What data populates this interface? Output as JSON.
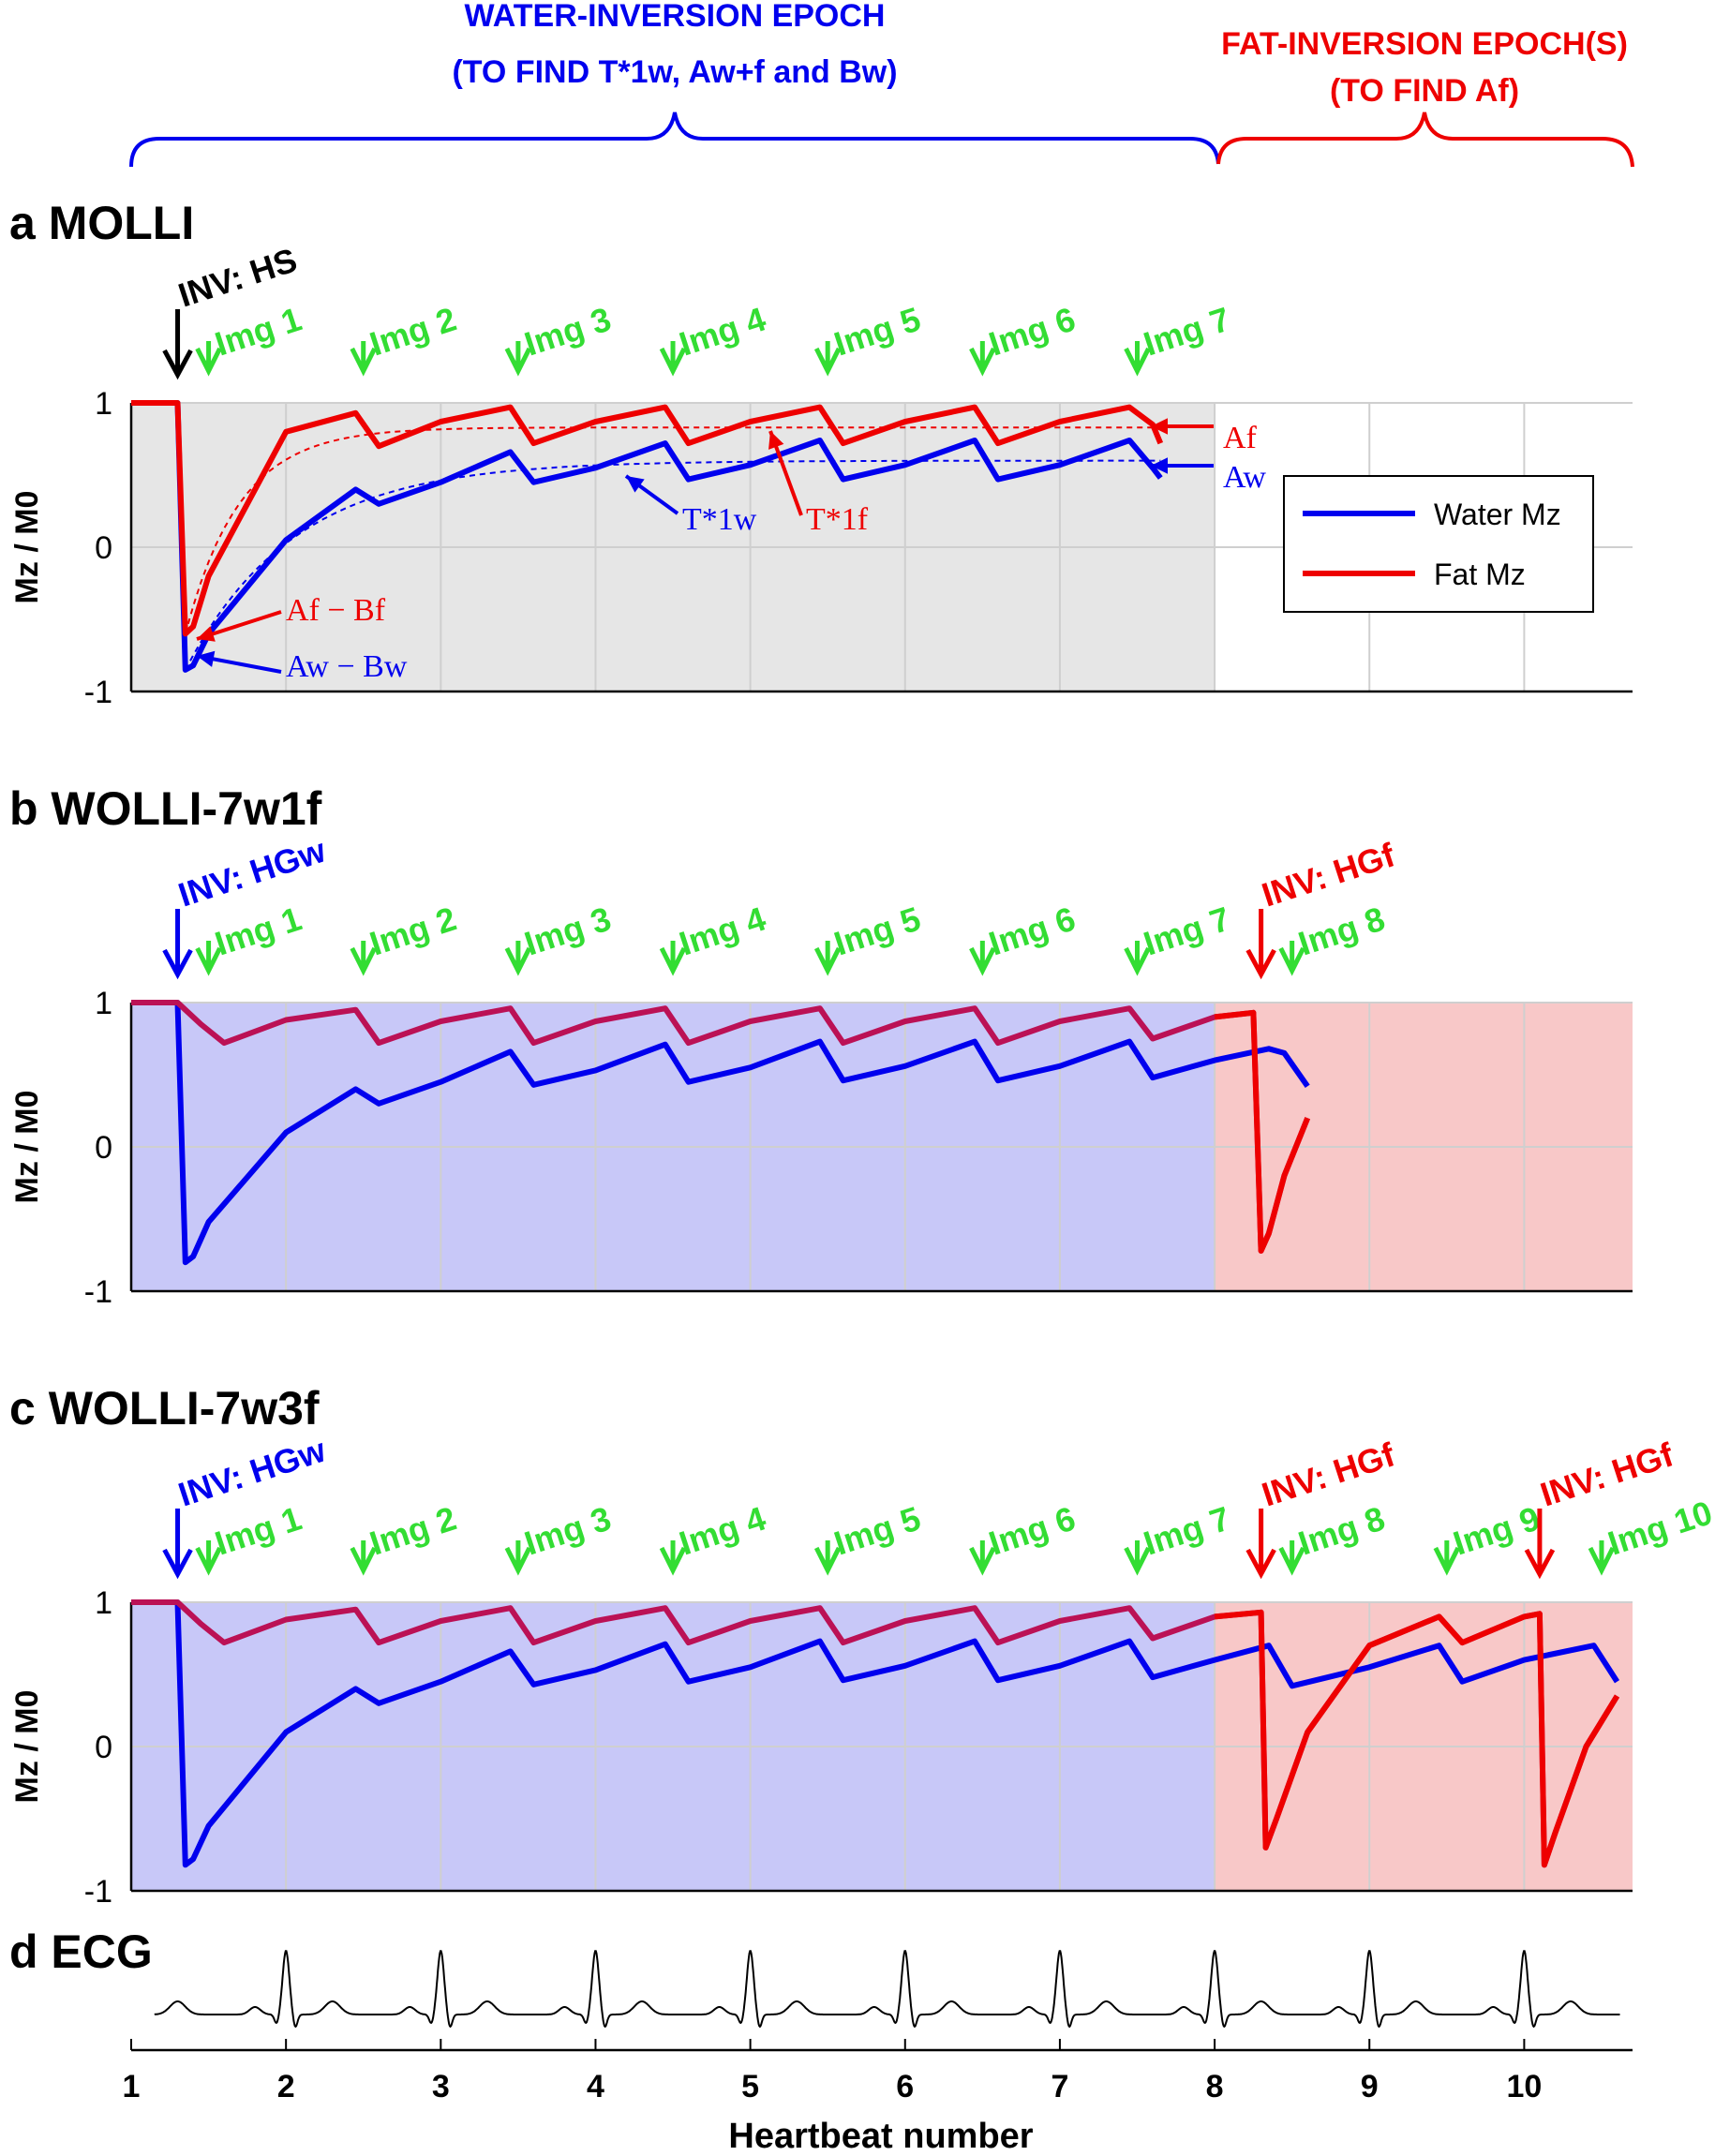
{
  "header": {
    "water_epoch_line1": "WATER-INVERSION EPOCH",
    "water_epoch_line2": "(TO FIND T*1w, Aw+f and Bw)",
    "fat_epoch_line1": "FAT-INVERSION EPOCH(S)",
    "fat_epoch_line2": "(TO FIND Af)"
  },
  "colors": {
    "water": "#0000ee",
    "fat": "#ee0000",
    "img_marker": "#33dd33",
    "water_epoch_bg": "#c8c8f8",
    "fat_epoch_bg": "#f8c8c8",
    "molli_bg": "#e6e6e6",
    "mixed_curve": "#bb1155"
  },
  "legend": {
    "water": "Water Mz",
    "fat": "Fat Mz"
  },
  "chart_data": [
    {
      "type": "line",
      "panel": "a",
      "title": "a  MOLLI",
      "ylabel": "Mz / M0",
      "xlim": [
        1,
        10.7
      ],
      "ylim": [
        -1,
        1
      ],
      "yticks": [
        "1",
        "0",
        "-1"
      ],
      "inversion_label": "INV: HS",
      "inversion_x": 1.3,
      "images": [
        {
          "label": "Img 1",
          "x": 1.5
        },
        {
          "label": "Img 2",
          "x": 2.5
        },
        {
          "label": "Img 3",
          "x": 3.5
        },
        {
          "label": "Img 4",
          "x": 4.5
        },
        {
          "label": "Img 5",
          "x": 5.5
        },
        {
          "label": "Img 6",
          "x": 6.5
        },
        {
          "label": "Img 7",
          "x": 7.5
        }
      ],
      "water_inversion_window": [
        1,
        8
      ],
      "annotations": {
        "A_f": "Af",
        "A_w": "Aw",
        "T1w": "T*1w",
        "T1f": "T*1f",
        "Af_minus_Bf": "Af − Bf",
        "Aw_minus_Bw": "Aw − Bw"
      },
      "fit_asymptotes": {
        "fat": 0.83,
        "water": 0.6
      },
      "series": [
        {
          "name": "Water Mz",
          "x": [
            1,
            1.3,
            1.35,
            1.4,
            1.5,
            2,
            2.45,
            2.6,
            3,
            3.45,
            3.6,
            4,
            4.45,
            4.6,
            5,
            5.45,
            5.6,
            6,
            6.45,
            6.6,
            7,
            7.45,
            7.6,
            7.65
          ],
          "y": [
            1,
            1,
            -0.85,
            -0.82,
            -0.6,
            0.05,
            0.4,
            0.3,
            0.45,
            0.66,
            0.45,
            0.55,
            0.72,
            0.47,
            0.57,
            0.74,
            0.47,
            0.57,
            0.74,
            0.47,
            0.57,
            0.74,
            0.55,
            0.48
          ]
        },
        {
          "name": "Fat Mz",
          "x": [
            1,
            1.3,
            1.35,
            1.4,
            1.5,
            2,
            2.45,
            2.6,
            3,
            3.45,
            3.6,
            4,
            4.45,
            4.6,
            5,
            5.45,
            5.6,
            6,
            6.45,
            6.6,
            7,
            7.45,
            7.6,
            7.65
          ],
          "y": [
            1,
            1,
            -0.6,
            -0.55,
            -0.2,
            0.8,
            0.93,
            0.7,
            0.87,
            0.97,
            0.72,
            0.87,
            0.97,
            0.72,
            0.87,
            0.97,
            0.72,
            0.87,
            0.97,
            0.72,
            0.87,
            0.97,
            0.85,
            0.72
          ]
        }
      ]
    },
    {
      "type": "line",
      "panel": "b",
      "title": "b  WOLLI-7w1f",
      "ylabel": "Mz / M0",
      "xlim": [
        1,
        10.7
      ],
      "ylim": [
        -1,
        1
      ],
      "yticks": [
        "1",
        "0",
        "-1"
      ],
      "inversions": [
        {
          "label": "INV: HGw",
          "x": 1.3,
          "color": "water"
        },
        {
          "label": "INV: HGf",
          "x": 8.3,
          "color": "fat"
        }
      ],
      "images": [
        {
          "label": "Img 1",
          "x": 1.5
        },
        {
          "label": "Img 2",
          "x": 2.5
        },
        {
          "label": "Img 3",
          "x": 3.5
        },
        {
          "label": "Img 4",
          "x": 4.5
        },
        {
          "label": "Img 5",
          "x": 5.5
        },
        {
          "label": "Img 6",
          "x": 6.5
        },
        {
          "label": "Img 7",
          "x": 7.5
        },
        {
          "label": "Img 8",
          "x": 8.5
        }
      ],
      "water_inversion_window": [
        1,
        8
      ],
      "fat_inversion_window": [
        8,
        10.7
      ],
      "series": [
        {
          "name": "Water Mz",
          "x": [
            1,
            1.3,
            1.35,
            1.4,
            1.5,
            2,
            2.45,
            2.6,
            3,
            3.45,
            3.6,
            4,
            4.45,
            4.6,
            5,
            5.45,
            5.6,
            6,
            6.45,
            6.6,
            7,
            7.45,
            7.6,
            8,
            8.35,
            8.45,
            8.6
          ],
          "y": [
            1,
            1,
            -0.8,
            -0.76,
            -0.52,
            0.1,
            0.4,
            0.3,
            0.45,
            0.66,
            0.43,
            0.53,
            0.71,
            0.45,
            0.55,
            0.73,
            0.46,
            0.56,
            0.73,
            0.46,
            0.56,
            0.73,
            0.48,
            0.6,
            0.68,
            0.65,
            0.42
          ]
        },
        {
          "name": "Fat Mz",
          "x": [
            1,
            1.3,
            1.45,
            1.6,
            2,
            2.45,
            2.6,
            3,
            3.45,
            3.6,
            4,
            4.45,
            4.6,
            5,
            5.45,
            5.6,
            6,
            6.45,
            6.6,
            7,
            7.45,
            7.6,
            8,
            8.25,
            8.3,
            8.35,
            8.45,
            8.6
          ],
          "y": [
            1,
            1,
            0.85,
            0.72,
            0.88,
            0.95,
            0.72,
            0.87,
            0.96,
            0.72,
            0.87,
            0.96,
            0.72,
            0.87,
            0.96,
            0.72,
            0.87,
            0.96,
            0.72,
            0.87,
            0.96,
            0.75,
            0.9,
            0.93,
            -0.72,
            -0.6,
            -0.2,
            0.2
          ]
        }
      ]
    },
    {
      "type": "line",
      "panel": "c",
      "title": "c  WOLLI-7w3f",
      "ylabel": "Mz / M0",
      "xlim": [
        1,
        10.7
      ],
      "ylim": [
        -1,
        1
      ],
      "yticks": [
        "1",
        "0",
        "-1"
      ],
      "inversions": [
        {
          "label": "INV: HGw",
          "x": 1.3,
          "color": "water"
        },
        {
          "label": "INV: HGf",
          "x": 8.3,
          "color": "fat"
        },
        {
          "label": "INV: HGf",
          "x": 10.1,
          "color": "fat"
        }
      ],
      "images": [
        {
          "label": "Img 1",
          "x": 1.5
        },
        {
          "label": "Img 2",
          "x": 2.5
        },
        {
          "label": "Img 3",
          "x": 3.5
        },
        {
          "label": "Img 4",
          "x": 4.5
        },
        {
          "label": "Img 5",
          "x": 5.5
        },
        {
          "label": "Img 6",
          "x": 6.5
        },
        {
          "label": "Img 7",
          "x": 7.5
        },
        {
          "label": "Img 8",
          "x": 8.5
        },
        {
          "label": "Img 9",
          "x": 9.5
        },
        {
          "label": "Img 10",
          "x": 10.5
        }
      ],
      "water_inversion_window": [
        1,
        8
      ],
      "fat_inversion_window": [
        8,
        10.7
      ],
      "series": [
        {
          "name": "Water Mz",
          "x": [
            1,
            1.3,
            1.35,
            1.4,
            1.5,
            2,
            2.45,
            2.6,
            3,
            3.45,
            3.6,
            4,
            4.45,
            4.6,
            5,
            5.45,
            5.6,
            6,
            6.45,
            6.6,
            7,
            7.45,
            7.6,
            8,
            8.35,
            8.5,
            9,
            9.45,
            9.6,
            10,
            10.45,
            10.6
          ],
          "y": [
            1,
            1,
            -0.82,
            -0.78,
            -0.55,
            0.1,
            0.4,
            0.3,
            0.45,
            0.66,
            0.43,
            0.53,
            0.71,
            0.45,
            0.55,
            0.73,
            0.46,
            0.56,
            0.73,
            0.46,
            0.56,
            0.73,
            0.48,
            0.6,
            0.7,
            0.42,
            0.55,
            0.7,
            0.45,
            0.6,
            0.7,
            0.45
          ]
        },
        {
          "name": "Fat Mz",
          "x": [
            1,
            1.3,
            1.45,
            1.6,
            2,
            2.45,
            2.6,
            3,
            3.45,
            3.6,
            4,
            4.45,
            4.6,
            5,
            5.45,
            5.6,
            6,
            6.45,
            6.6,
            7,
            7.45,
            7.6,
            8,
            8.3,
            8.33,
            8.4,
            8.6,
            9,
            9.45,
            9.6,
            10,
            10.1,
            10.13,
            10.2,
            10.4,
            10.6
          ],
          "y": [
            1,
            1,
            0.85,
            0.72,
            0.88,
            0.95,
            0.72,
            0.87,
            0.96,
            0.72,
            0.87,
            0.96,
            0.72,
            0.87,
            0.96,
            0.72,
            0.87,
            0.96,
            0.72,
            0.87,
            0.96,
            0.75,
            0.9,
            0.93,
            -0.7,
            -0.5,
            0.1,
            0.7,
            0.9,
            0.72,
            0.9,
            0.92,
            -0.82,
            -0.6,
            0.0,
            0.35
          ]
        }
      ]
    },
    {
      "type": "line",
      "panel": "d",
      "title": "d  ECG",
      "xlabel": "Heartbeat number",
      "xlim": [
        1,
        10.7
      ],
      "xticks": [
        "1",
        "2",
        "3",
        "4",
        "5",
        "6",
        "7",
        "8",
        "9",
        "10"
      ],
      "r_peaks": [
        2,
        3,
        4,
        5,
        6,
        7,
        8,
        9,
        10
      ]
    }
  ]
}
